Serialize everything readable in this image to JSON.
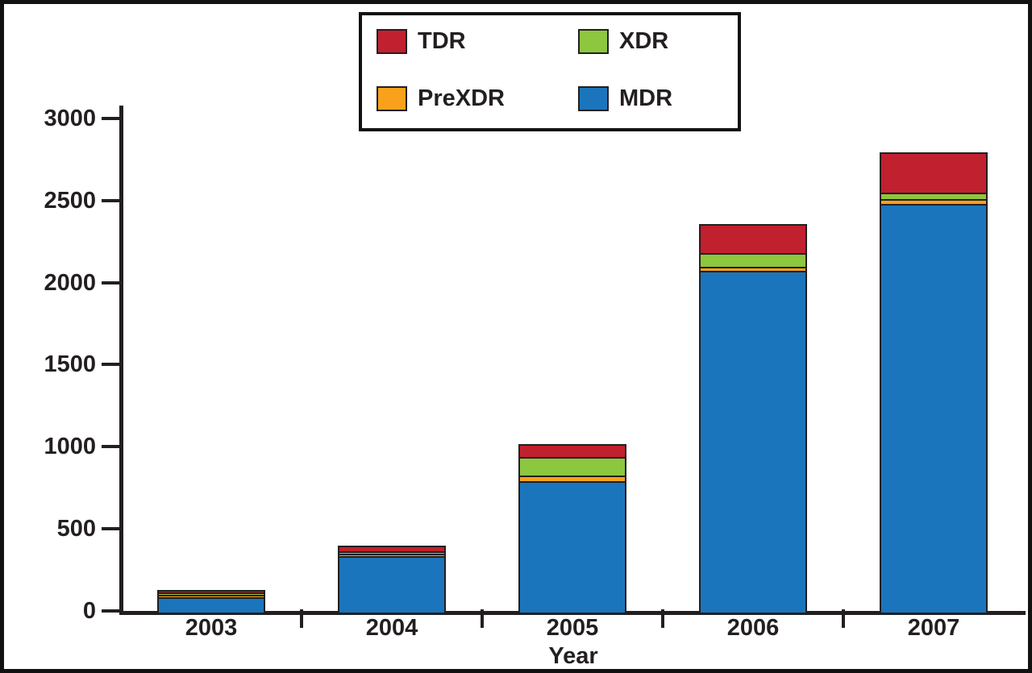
{
  "chart_data": {
    "type": "bar",
    "stacked": true,
    "title": "",
    "xlabel": "Year",
    "ylabel": "",
    "categories": [
      "2003",
      "2004",
      "2005",
      "2006",
      "2007"
    ],
    "series": [
      {
        "name": "MDR",
        "color": "#1b75bc",
        "values": [
          95,
          345,
          800,
          2080,
          2490
        ]
      },
      {
        "name": "PreXDR",
        "color": "#f9a11b",
        "values": [
          5,
          10,
          35,
          25,
          30
        ]
      },
      {
        "name": "XDR",
        "color": "#8dc63f",
        "values": [
          5,
          10,
          115,
          85,
          40
        ]
      },
      {
        "name": "TDR",
        "color": "#c1202f",
        "values": [
          10,
          35,
          80,
          175,
          245
        ]
      }
    ],
    "totals": [
      115,
      400,
      1030,
      2365,
      2805
    ],
    "ylim": [
      0,
      3000
    ],
    "yticks": [
      0,
      500,
      1000,
      1500,
      2000,
      2500,
      3000
    ],
    "grid": false,
    "legend": {
      "position": "top-center",
      "rows": [
        [
          "TDR",
          "XDR"
        ],
        [
          "PreXDR",
          "MDR"
        ]
      ]
    }
  },
  "colors": {
    "frame": "#111111",
    "axis": "#231f20",
    "text": "#231f20",
    "background": "#ffffff"
  }
}
